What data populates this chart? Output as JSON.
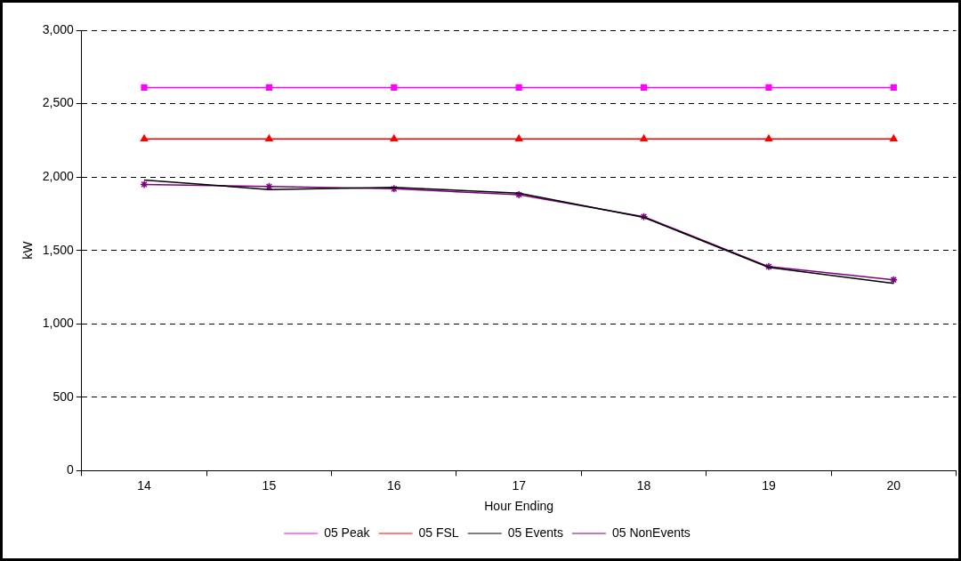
{
  "chart_data": {
    "type": "line",
    "xlabel": "Hour Ending",
    "ylabel": "kW",
    "categories": [
      "14",
      "15",
      "16",
      "17",
      "18",
      "19",
      "20"
    ],
    "ylim": [
      0,
      3000
    ],
    "yticks": [
      0,
      500,
      {
        "value": 1000,
        "label": "1,000"
      },
      {
        "value": 1500,
        "label": "1,500"
      },
      {
        "value": 2000,
        "label": "2,000"
      },
      {
        "value": 2500,
        "label": "2,500"
      },
      {
        "value": 3000,
        "label": "3,000"
      }
    ],
    "grid": "y",
    "legend": "bottom",
    "line_style": "solid",
    "series": [
      {
        "name": "05 Peak",
        "color": "#ff00ff",
        "marker": "square",
        "values": [
          2610,
          2610,
          2610,
          2610,
          2610,
          2610,
          2610
        ]
      },
      {
        "name": "05 FSL",
        "color": "#ff0000",
        "marker": "triangle",
        "values": [
          2260,
          2260,
          2260,
          2260,
          2260,
          2260,
          2260
        ]
      },
      {
        "name": "05 Events",
        "color": "#000000",
        "marker": "none",
        "values": [
          1980,
          1915,
          1930,
          1890,
          1725,
          1385,
          1275
        ]
      },
      {
        "name": "05 NonEvents",
        "color": "#800080",
        "marker": "cross",
        "values": [
          1950,
          1935,
          1920,
          1880,
          1730,
          1390,
          1300
        ]
      }
    ]
  }
}
